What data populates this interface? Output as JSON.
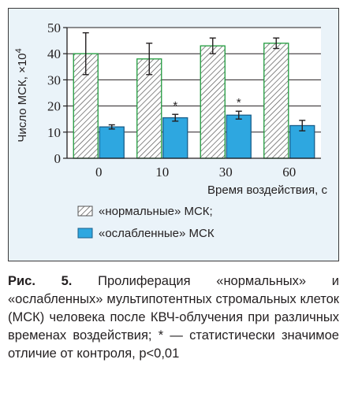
{
  "chart_data": {
    "type": "bar",
    "categories": [
      "0",
      "10",
      "30",
      "60"
    ],
    "xlabel": "Время воздействия, с",
    "ylabel": "Число МСК, ×10",
    "ylabel_exponent": "4",
    "ylim": [
      0,
      50
    ],
    "yticks": [
      "0",
      "10",
      "20",
      "30",
      "40",
      "50"
    ],
    "grid": "horizontal",
    "legend_placement": "bottom",
    "series": [
      {
        "name": "«нормальные» МСК;",
        "values": [
          40,
          38,
          43,
          44
        ],
        "error": [
          8,
          6,
          3,
          2
        ],
        "pattern": "hatched",
        "fill": "#ffffff",
        "stroke": "#1f9a3c",
        "markers": [
          "",
          "",
          "",
          ""
        ]
      },
      {
        "name": "«ослабленные» МСК",
        "values": [
          12,
          15.5,
          16.5,
          12.5
        ],
        "error": [
          0.8,
          1.3,
          1.5,
          2
        ],
        "pattern": "solid",
        "fill": "#2ea7e0",
        "stroke": "#1a5f8a",
        "markers": [
          "",
          "*",
          "*",
          ""
        ]
      }
    ]
  },
  "caption": {
    "label": "Рис. 5.",
    "text": "Пролиферация «нормальных» и «ослабленных» мультипотентных стромальных клеток (МСК) человека после КВЧ-облучения при различных временах воздействия; * — статистически значимое отличие от контроля, p<0,01"
  }
}
